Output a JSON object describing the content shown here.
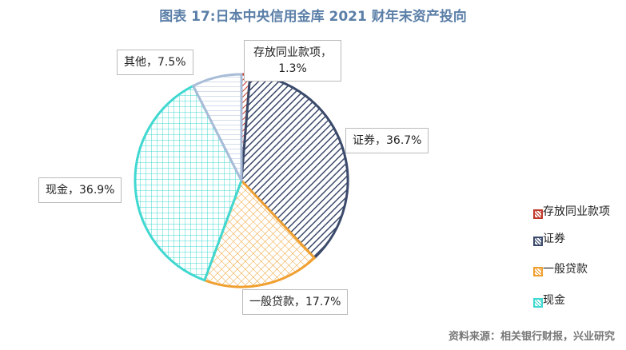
{
  "chart_data": {
    "type": "pie",
    "title": "图表 17:日本中央信用金库 2021 财年末资产投向",
    "categories": [
      "存放同业款项",
      "证券",
      "一般贷款",
      "现金",
      "其他"
    ],
    "values": [
      1.3,
      36.7,
      17.7,
      36.9,
      7.5
    ],
    "value_labels": [
      "存放同业款项，1.3%",
      "证券，36.7%",
      "一般贷款，17.7%",
      "现金，36.9%",
      "其他，7.5%"
    ],
    "colors": [
      "#c0392b",
      "#3b4a6b",
      "#f0a030",
      "#40d8d0",
      "#a8bcd8"
    ],
    "legend": [
      "存放同业款项",
      "证券",
      "一般贷款",
      "现金"
    ],
    "legend_position": "right",
    "source": "资料来源：相关银行财报，兴业研究"
  }
}
